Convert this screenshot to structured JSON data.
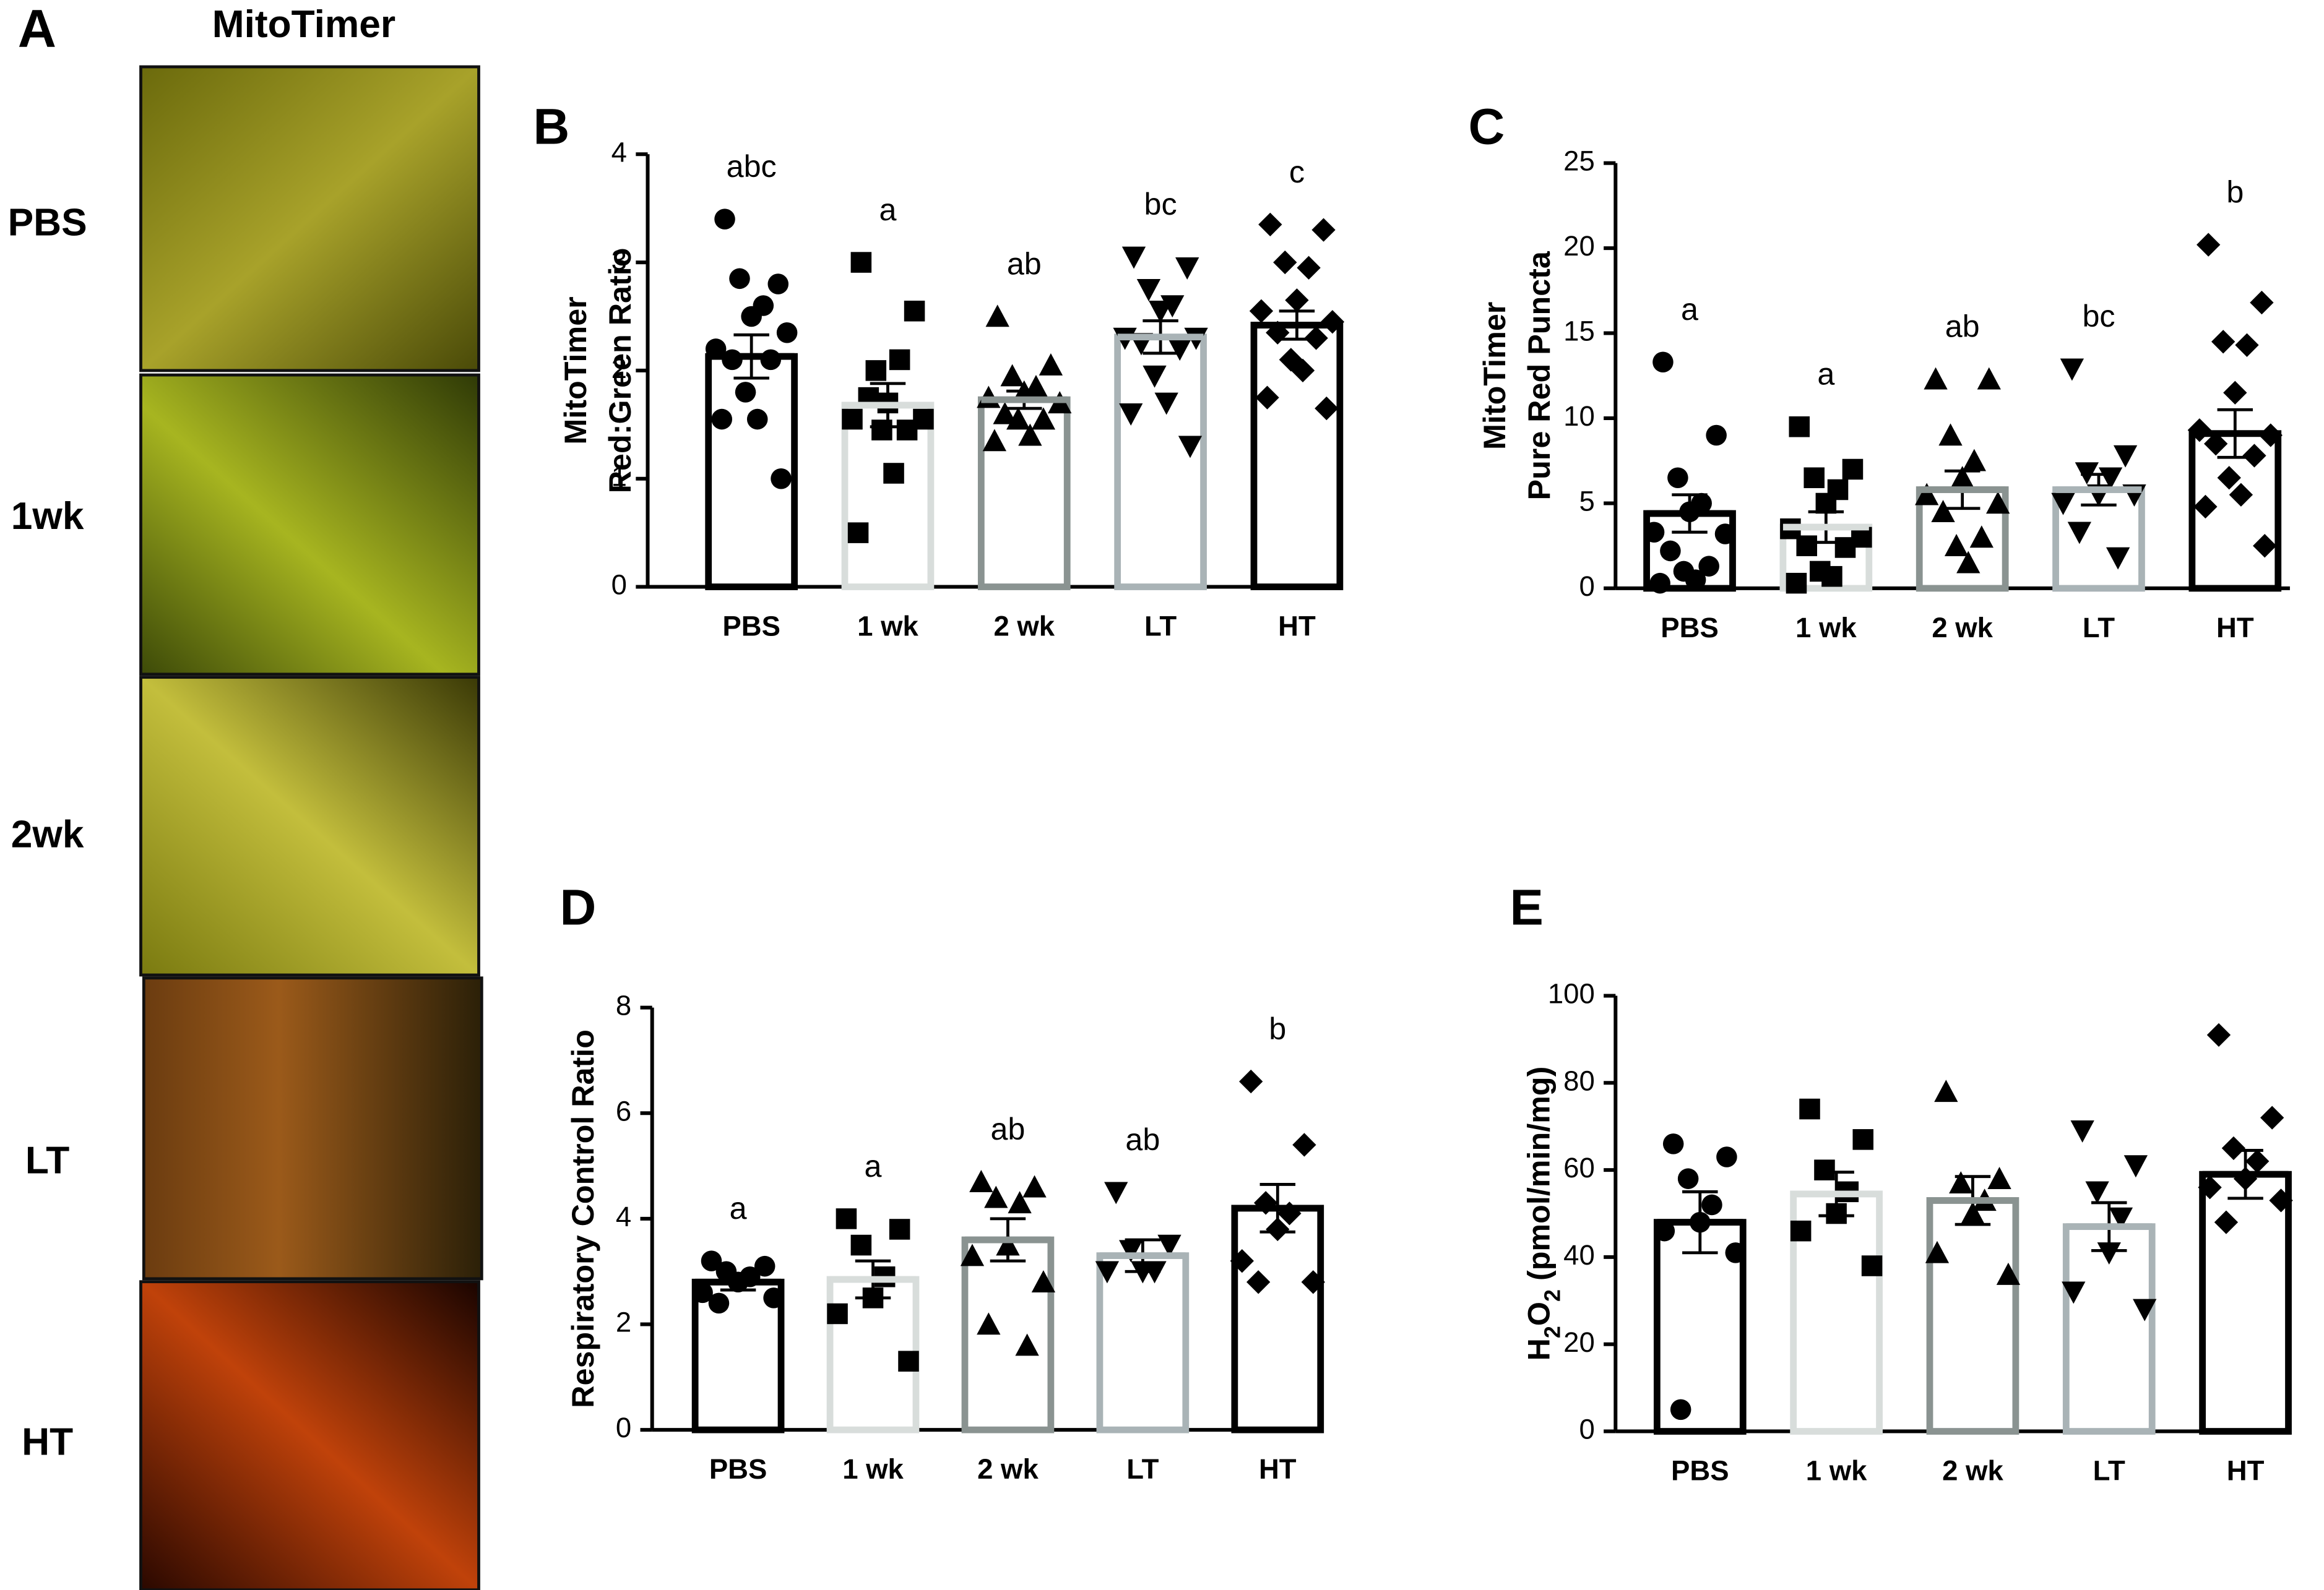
{
  "panel_a": {
    "label": "A",
    "title": "MitoTimer",
    "rows": [
      "PBS",
      "1wk",
      "2wk",
      "LT",
      "HT"
    ]
  },
  "chart_data": [
    {
      "type": "bar",
      "panel": "B",
      "ylabel": [
        "MitoTimer",
        "Red:Green Ratio"
      ],
      "categories": [
        "PBS",
        "1 wk",
        "2 wk",
        "LT",
        "HT"
      ],
      "colors": [
        "#000000",
        "#d8dddb",
        "#8a9391",
        "#a9b3b6",
        "#000000"
      ],
      "markers": [
        "circle",
        "square",
        "triangle",
        "triangle-down",
        "diamond"
      ],
      "values": [
        2.13,
        1.68,
        1.73,
        2.31,
        2.42
      ],
      "errors": [
        0.2,
        0.2,
        0.08,
        0.15,
        0.13
      ],
      "letters": [
        "abc",
        "a",
        "ab",
        "bc",
        "c"
      ],
      "points": [
        [
          3.4,
          2.8,
          2.85,
          2.6,
          2.5,
          2.2,
          2.35,
          2.1,
          2.1,
          1.8,
          1.55,
          1.55,
          1.0
        ],
        [
          3.0,
          2.55,
          2.0,
          2.1,
          1.7,
          1.55,
          1.55,
          1.75,
          1.45,
          1.45,
          1.05,
          0.5
        ],
        [
          2.5,
          2.05,
          1.95,
          1.85,
          1.8,
          1.75,
          1.7,
          1.6,
          1.55,
          1.55,
          1.4,
          1.35
        ],
        [
          3.05,
          2.95,
          2.75,
          2.6,
          2.55,
          2.3,
          2.3,
          2.25,
          2.2,
          1.95,
          1.7,
          1.6,
          1.3
        ],
        [
          3.35,
          3.3,
          3.0,
          2.95,
          2.65,
          2.55,
          2.45,
          2.35,
          2.3,
          2.1,
          2.0,
          1.75,
          1.65
        ]
      ],
      "ylim": [
        0,
        4
      ],
      "yticks": [
        0,
        1,
        2,
        3,
        4
      ]
    },
    {
      "type": "bar",
      "panel": "C",
      "ylabel": [
        "MitoTimer",
        "Pure Red Puncta"
      ],
      "categories": [
        "PBS",
        "1 wk",
        "2 wk",
        "LT",
        "HT"
      ],
      "colors": [
        "#000000",
        "#d8dddb",
        "#8a9391",
        "#a9b3b6",
        "#000000"
      ],
      "markers": [
        "circle",
        "square",
        "triangle",
        "triangle-down",
        "diamond"
      ],
      "values": [
        4.4,
        3.6,
        5.8,
        5.8,
        9.1
      ],
      "errors": [
        1.1,
        0.9,
        1.1,
        0.9,
        1.4
      ],
      "letters": [
        "a",
        "a",
        "ab",
        "bc",
        "b"
      ],
      "points": [
        [
          13.3,
          9,
          6.5,
          5,
          4.5,
          3.3,
          3.2,
          2.2,
          1.3,
          1,
          0.5,
          0.3
        ],
        [
          9.5,
          7,
          6.5,
          5.8,
          5,
          3.5,
          3,
          2.5,
          2.4,
          1,
          0.7,
          0.3
        ],
        [
          12.3,
          12.3,
          9,
          7.5,
          6.5,
          5.5,
          5,
          4.5,
          3,
          2.5,
          1.5
        ],
        [
          12.9,
          7.8,
          6.8,
          6.5,
          5.5,
          5,
          5.5,
          3.3,
          1.8
        ],
        [
          20.2,
          16.8,
          14.5,
          14.3,
          11.5,
          9.3,
          9,
          8.5,
          7.8,
          6.5,
          5.5,
          4.8,
          2.5
        ]
      ],
      "ylim": [
        0,
        25
      ],
      "yticks": [
        0,
        5,
        10,
        15,
        20,
        25
      ]
    },
    {
      "type": "bar",
      "panel": "D",
      "ylabel": [
        "Respiratory Control Ratio"
      ],
      "categories": [
        "PBS",
        "1 wk",
        "2 wk",
        "LT",
        "HT"
      ],
      "colors": [
        "#000000",
        "#d8dddb",
        "#8a9391",
        "#a9b3b6",
        "#000000"
      ],
      "markers": [
        "circle",
        "square",
        "triangle",
        "triangle-down",
        "diamond"
      ],
      "values": [
        2.8,
        2.85,
        3.6,
        3.3,
        4.2
      ],
      "errors": [
        0.15,
        0.35,
        0.4,
        0.3,
        0.45
      ],
      "letters": [
        "a",
        "a",
        "ab",
        "ab",
        "b"
      ],
      "points": [
        [
          3.2,
          3.1,
          3.0,
          2.9,
          2.8,
          2.6,
          2.5,
          2.4
        ],
        [
          4.0,
          3.8,
          3.5,
          2.9,
          2.5,
          2.2,
          1.3
        ],
        [
          4.7,
          4.6,
          4.4,
          4.3,
          3.5,
          3.3,
          2.8,
          2.0,
          1.6
        ],
        [
          4.5,
          3.5,
          3.4,
          3.0,
          3.0,
          3.0
        ],
        [
          6.6,
          5.4,
          4.3,
          4.1,
          3.8,
          3.2,
          2.8,
          2.8
        ]
      ],
      "ylim": [
        0,
        8
      ],
      "yticks": [
        0,
        2,
        4,
        6,
        8
      ]
    },
    {
      "type": "bar",
      "panel": "E",
      "ylabel_parts": [
        {
          "text": "H"
        },
        {
          "text": "2",
          "sub": true
        },
        {
          "text": "O"
        },
        {
          "text": "2",
          "sub": true
        },
        {
          "text": " (pmol/min/mg)"
        }
      ],
      "categories": [
        "PBS",
        "1 wk",
        "2 wk",
        "LT",
        "HT"
      ],
      "colors": [
        "#000000",
        "#d8dddb",
        "#8a9391",
        "#a9b3b6",
        "#000000"
      ],
      "markers": [
        "circle",
        "square",
        "triangle",
        "triangle-down",
        "diamond"
      ],
      "values": [
        48,
        54.5,
        53,
        47,
        59
      ],
      "errors": [
        7,
        5,
        5.5,
        5.5,
        5.5
      ],
      "points": [
        [
          66,
          63,
          58,
          52,
          48,
          46,
          41,
          5
        ],
        [
          74,
          67,
          60,
          55,
          50,
          46,
          38
        ],
        [
          78,
          58,
          57,
          53,
          50,
          41,
          36
        ],
        [
          69,
          61,
          55,
          49,
          41,
          32,
          28
        ],
        [
          91,
          72,
          65,
          62,
          58,
          56,
          53,
          48
        ]
      ],
      "ylim": [
        0,
        100
      ],
      "yticks": [
        0,
        20,
        40,
        60,
        80,
        100
      ]
    }
  ]
}
